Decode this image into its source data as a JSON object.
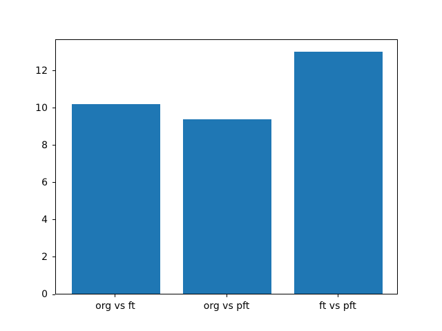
{
  "chart_data": {
    "type": "bar",
    "categories": [
      "org vs ft",
      "org vs pft",
      "ft vs pft"
    ],
    "values": [
      10.2,
      9.35,
      13.0
    ],
    "title": "",
    "xlabel": "",
    "ylabel": "",
    "ylim": [
      0,
      13.7
    ],
    "yticks": [
      0,
      2,
      4,
      6,
      8,
      10,
      12
    ],
    "bar_color": "#1f77b4",
    "spine_color": "#000000",
    "background_color": "#ffffff",
    "grid": false,
    "legend": null,
    "bar_width_fraction": 0.8,
    "xlim": [
      -0.54,
      2.54
    ]
  }
}
